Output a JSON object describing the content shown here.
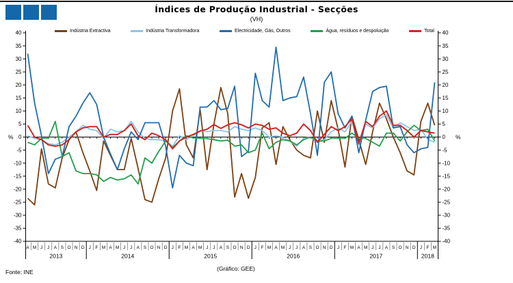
{
  "header": {
    "title": "Índices de Produção Industrial - Secções",
    "subtitle": "(VH)"
  },
  "footer": {
    "source": "Fonte: INE",
    "credit": "(Gráfico: GEE)"
  },
  "logo": {
    "color": "#1467A8",
    "squares": 3
  },
  "axes": {
    "y_unit_left": "%",
    "y_unit_right": "%",
    "y_ticks": [
      40,
      35,
      30,
      25,
      20,
      15,
      10,
      5,
      0,
      -5,
      -10,
      -15,
      -20,
      -25,
      -30,
      -35,
      -40
    ],
    "ylim": [
      -40,
      40
    ]
  },
  "x_axis": {
    "years": [
      {
        "label": "2013",
        "months": [
          "A",
          "M",
          "J",
          "J",
          "A",
          "S",
          "O",
          "N",
          "D"
        ]
      },
      {
        "label": "2014",
        "months": [
          "J",
          "F",
          "M",
          "A",
          "M",
          "J",
          "J",
          "A",
          "S",
          "O",
          "N",
          "D"
        ]
      },
      {
        "label": "2015",
        "months": [
          "J",
          "F",
          "M",
          "A",
          "M",
          "J",
          "J",
          "A",
          "S",
          "O",
          "N",
          "D"
        ]
      },
      {
        "label": "2016",
        "months": [
          "J",
          "F",
          "M",
          "A",
          "M",
          "J",
          "J",
          "A",
          "S",
          "O",
          "N",
          "D"
        ]
      },
      {
        "label": "2017",
        "months": [
          "J",
          "F",
          "M",
          "A",
          "M",
          "J",
          "J",
          "A",
          "S",
          "O",
          "N",
          "D"
        ]
      },
      {
        "label": "2018",
        "months": [
          "J",
          "F",
          "M"
        ]
      }
    ]
  },
  "legend": [
    {
      "label": "Indústria Extractiva",
      "color": "#7B3F10"
    },
    {
      "label": "Indústria Transformadora",
      "color": "#8CC4EA"
    },
    {
      "label": "Electricidade, Gás, Outros",
      "color": "#1F6CB5"
    },
    {
      "label": "Água, resíduos e despoluição",
      "color": "#21A04B"
    },
    {
      "label": "Total",
      "color": "#D42520"
    }
  ],
  "chart_data": {
    "type": "line",
    "title": "Índices de Produção Industrial - Secções (VH)",
    "ylabel": "%",
    "ylim": [
      -40,
      40
    ],
    "grid": false,
    "legend_position": "top",
    "x": [
      "2013-04",
      "2013-05",
      "2013-06",
      "2013-07",
      "2013-08",
      "2013-09",
      "2013-10",
      "2013-11",
      "2013-12",
      "2014-01",
      "2014-02",
      "2014-03",
      "2014-04",
      "2014-05",
      "2014-06",
      "2014-07",
      "2014-08",
      "2014-09",
      "2014-10",
      "2014-11",
      "2014-12",
      "2015-01",
      "2015-02",
      "2015-03",
      "2015-04",
      "2015-05",
      "2015-06",
      "2015-07",
      "2015-08",
      "2015-09",
      "2015-10",
      "2015-11",
      "2015-12",
      "2016-01",
      "2016-02",
      "2016-03",
      "2016-04",
      "2016-05",
      "2016-06",
      "2016-07",
      "2016-08",
      "2016-09",
      "2016-10",
      "2016-11",
      "2016-12",
      "2017-01",
      "2017-02",
      "2017-03",
      "2017-04",
      "2017-05",
      "2017-06",
      "2017-07",
      "2017-08",
      "2017-09",
      "2017-10",
      "2017-11",
      "2017-12",
      "2018-01",
      "2018-02",
      "2018-03"
    ],
    "series": [
      {
        "name": "Indústria Extractiva",
        "color": "#7B3F10",
        "values": [
          -23.5,
          -26,
          -4.5,
          -18,
          -19.5,
          -8,
          -1,
          2,
          -6,
          -13,
          -20.5,
          -1.5,
          -7,
          -12.5,
          -12.5,
          -0.5,
          -12,
          -24,
          -25,
          -16,
          -8,
          10,
          18.5,
          -3,
          -8,
          10.5,
          -12.5,
          5,
          19,
          9,
          -23,
          -14,
          -23.5,
          -15.5,
          3.5,
          5.5,
          -10.5,
          4,
          -1,
          -5,
          -7,
          -8,
          10,
          -2,
          14,
          3,
          -11.5,
          8,
          -1,
          -10.5,
          2,
          13,
          7,
          0,
          -6,
          -13,
          -14.5,
          6,
          13,
          4.5
        ]
      },
      {
        "name": "Indústria Transformadora",
        "color": "#8CC4EA",
        "values": [
          0.5,
          -0.5,
          -1,
          -2.5,
          -3,
          -2,
          0,
          2,
          4.5,
          3,
          2.5,
          -0.5,
          3,
          2,
          2.5,
          6,
          2,
          -0.5,
          -1,
          -1,
          -1.5,
          -3.5,
          0.5,
          -1,
          0.5,
          2.5,
          2,
          2.5,
          2.5,
          2,
          4,
          3,
          2.5,
          3.5,
          2.5,
          0,
          0.5,
          0,
          -1.5,
          -3.5,
          -0.5,
          0,
          -2,
          -1,
          2,
          3.5,
          2,
          6,
          -3,
          5,
          3.5,
          7,
          8.5,
          3.5,
          5.5,
          4,
          2.5,
          3,
          -1,
          -2
        ]
      },
      {
        "name": "Electricidade, Gás, Outros",
        "color": "#1F6CB5",
        "values": [
          32,
          13,
          0.5,
          -14,
          -8.5,
          -7.5,
          4,
          8,
          13,
          17,
          12.5,
          0,
          -6.5,
          -12.5,
          -4.5,
          2,
          -1,
          5.5,
          5.5,
          5.5,
          -3.5,
          -19.5,
          -7,
          -10,
          -11,
          11.5,
          11.5,
          14,
          10.5,
          11,
          19.5,
          -7.5,
          -5.5,
          24.5,
          14,
          11.5,
          34.5,
          14,
          15,
          15.5,
          23,
          9,
          -7,
          21,
          25,
          9,
          3.5,
          8,
          -6,
          6.5,
          17.5,
          19,
          19.5,
          3.5,
          4,
          -3,
          -6,
          -4.5,
          -4,
          21
        ]
      },
      {
        "name": "Água, resíduos e despoluição",
        "color": "#21A04B",
        "values": [
          -2,
          -3,
          -0.5,
          -0.5,
          6,
          -7.5,
          -6,
          -13,
          -14,
          -14,
          -14.5,
          -17,
          -15.5,
          -16.5,
          -16,
          -14.5,
          -18,
          -8,
          -10,
          -5.5,
          -1.5,
          -4,
          -1.5,
          0.5,
          -0.3,
          -0.5,
          -0.6,
          -1,
          -1.5,
          -1.2,
          -3.5,
          -3,
          -6,
          -5,
          1.5,
          -4.5,
          -2,
          -1,
          -1.5,
          -3,
          -1,
          0,
          -1.5,
          -1.5,
          -0.5,
          -0.5,
          -0.5,
          1.5,
          -0.5,
          -0.5,
          -2,
          -3.5,
          1.5,
          1.5,
          -1.5,
          2,
          4.5,
          2.5,
          3,
          -1.5
        ]
      },
      {
        "name": "Total",
        "color": "#D42520",
        "values": [
          4.5,
          0,
          -1,
          -3,
          -3.5,
          -3,
          -1,
          2,
          3.5,
          4,
          4,
          0,
          1,
          1,
          2.5,
          5,
          0.5,
          -1,
          1.5,
          0.5,
          -1,
          -4.5,
          -1.5,
          0,
          1,
          2.3,
          3,
          4.8,
          3.3,
          4.7,
          5.5,
          4.7,
          3.5,
          5,
          4.5,
          3,
          3.5,
          1.5,
          0.5,
          1.5,
          5,
          2.5,
          -2,
          1,
          4,
          2.5,
          4,
          7,
          -2.5,
          6,
          4,
          8,
          10,
          4.5,
          4.5,
          2.5,
          0,
          2.5,
          2,
          1.5
        ]
      }
    ]
  }
}
